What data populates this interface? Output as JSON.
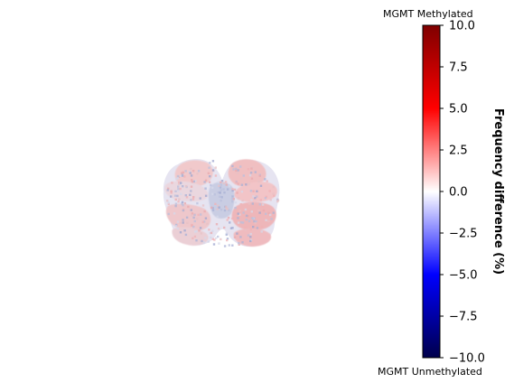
{
  "chart_data": {
    "type": "heatmap",
    "title": "",
    "colorbar": {
      "label": "Frequency difference (%)",
      "top_annotation": "MGMT Methylated",
      "bottom_annotation": "MGMT Unmethylated",
      "range": [
        -10.0,
        10.0
      ],
      "ticks": [
        "10.0",
        "7.5",
        "5.0",
        "2.5",
        "0.0",
        "−2.5",
        "−5.0",
        "−7.5",
        "−10.0"
      ],
      "tick_values": [
        10.0,
        7.5,
        5.0,
        2.5,
        0.0,
        -2.5,
        -5.0,
        -7.5,
        -10.0
      ],
      "colormap": "seismic",
      "colormap_stops": [
        {
          "value": -10.0,
          "color": "#00004c"
        },
        {
          "value": -5.0,
          "color": "#0000ff"
        },
        {
          "value": 0.0,
          "color": "#ffffff"
        },
        {
          "value": 5.0,
          "color": "#ff0000"
        },
        {
          "value": 10.0,
          "color": "#7f0000"
        }
      ]
    },
    "image_description_values": {
      "min_observed": -3.0,
      "max_observed": 3.5
    }
  }
}
